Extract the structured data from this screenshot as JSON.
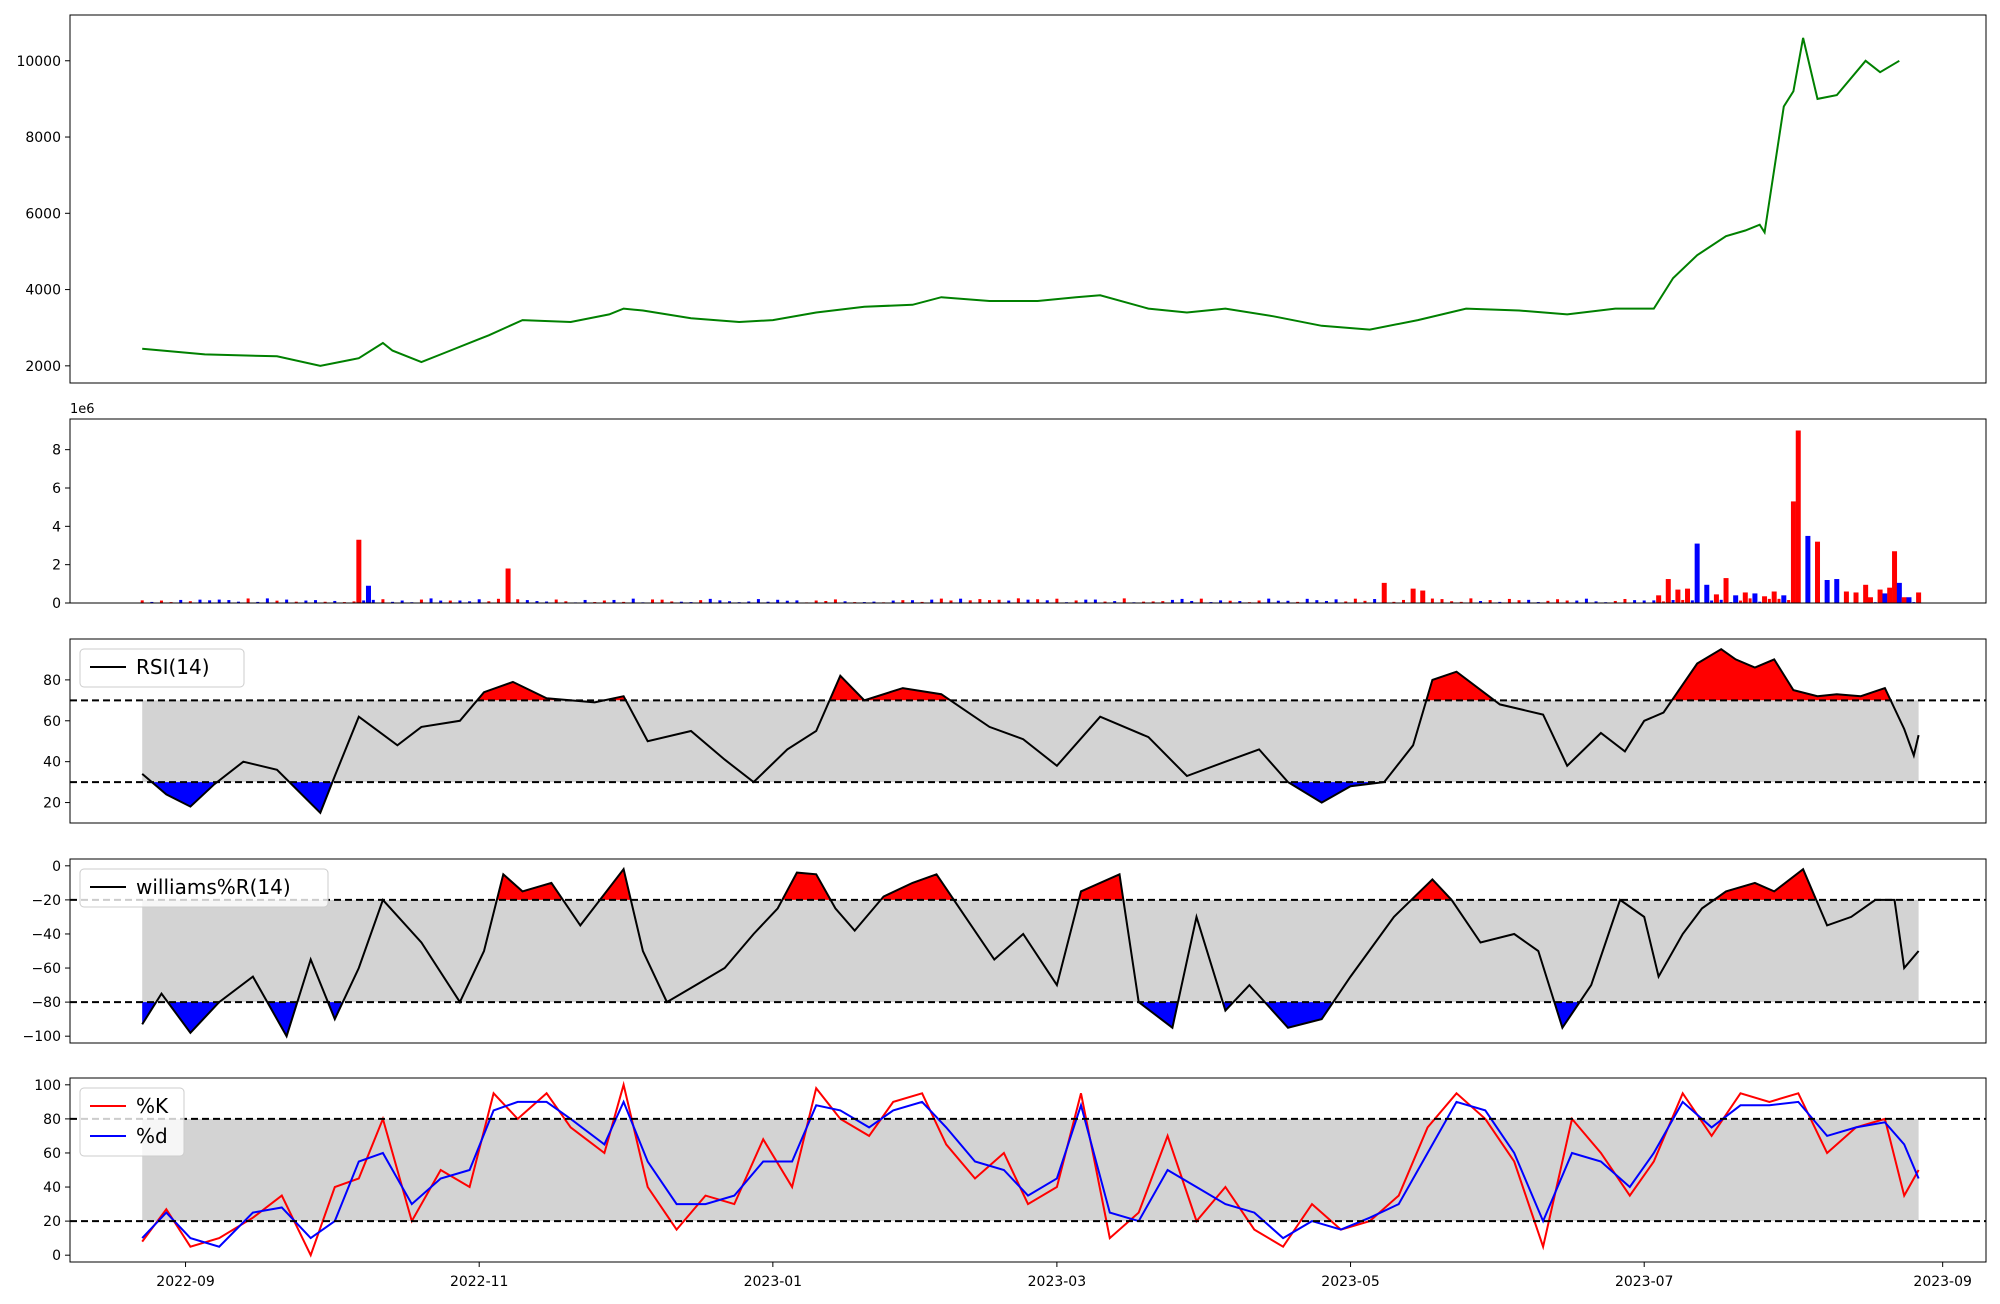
{
  "figure": {
    "x_tick_labels": [
      "2022-09",
      "2022-11",
      "2023-01",
      "2023-03",
      "2023-05",
      "2023-07",
      "2023-09"
    ],
    "x_tick_dates": [
      "2022-09-01",
      "2022-11-01",
      "2023-01-01",
      "2023-03-01",
      "2023-05-01",
      "2023-07-01",
      "2023-09-01"
    ],
    "x_range": [
      "2022-08-08",
      "2023-09-10"
    ]
  },
  "colors": {
    "price": "#008000",
    "volume_up": "#ff0000",
    "volume_down": "#0000ff",
    "overbought_fill": "#ff0000",
    "oversold_fill": "#0000ff",
    "band_fill": "#d3d3d3",
    "rsi_line": "#000000",
    "k_line": "#ff0000",
    "d_line": "#0000ff"
  },
  "chart_data": [
    {
      "type": "line",
      "id": "price",
      "ylim": [
        1550,
        11200
      ],
      "yticks": [
        2000,
        4000,
        6000,
        8000,
        10000
      ],
      "ytick_labels": [
        "2000",
        "4000",
        "6000",
        "8000",
        "10000"
      ],
      "dates": [
        "2022-08-23",
        "2022-09-05",
        "2022-09-20",
        "2022-09-29",
        "2022-10-05",
        "2022-10-07",
        "2022-10-12",
        "2022-10-14",
        "2022-10-20",
        "2022-10-25",
        "2022-11-01",
        "2022-11-03",
        "2022-11-10",
        "2022-11-20",
        "2022-11-28",
        "2022-12-01",
        "2022-12-05",
        "2022-12-15",
        "2022-12-25",
        "2023-01-01",
        "2023-01-10",
        "2023-01-20",
        "2023-01-30",
        "2023-02-05",
        "2023-02-15",
        "2023-02-25",
        "2023-03-05",
        "2023-03-10",
        "2023-03-20",
        "2023-03-28",
        "2023-04-05",
        "2023-04-15",
        "2023-04-25",
        "2023-05-05",
        "2023-05-15",
        "2023-05-25",
        "2023-06-05",
        "2023-06-15",
        "2023-06-25",
        "2023-07-03",
        "2023-07-07",
        "2023-07-12",
        "2023-07-18",
        "2023-07-22",
        "2023-07-25",
        "2023-07-26",
        "2023-07-30",
        "2023-08-01",
        "2023-08-03",
        "2023-08-06",
        "2023-08-10",
        "2023-08-16",
        "2023-08-19",
        "2023-08-23"
      ],
      "values": [
        2450,
        2300,
        2250,
        2000,
        2150,
        2200,
        2600,
        2400,
        2100,
        2350,
        2700,
        2800,
        3200,
        3150,
        3350,
        3500,
        3450,
        3250,
        3150,
        3200,
        3400,
        3550,
        3600,
        3800,
        3700,
        3700,
        3800,
        3850,
        3500,
        3400,
        3500,
        3300,
        3050,
        2950,
        3200,
        3500,
        3450,
        3350,
        3500,
        3500,
        4300,
        4900,
        5400,
        5550,
        5700,
        5500,
        8800,
        9200,
        10600,
        9000,
        9100,
        10000,
        9700,
        10000
      ]
    },
    {
      "type": "bar",
      "id": "volume",
      "exponent_label": "1e6",
      "ylim": [
        0,
        9600000
      ],
      "yticks": [
        0,
        2000000,
        4000000,
        6000000,
        8000000
      ],
      "ytick_labels": [
        "0",
        "2",
        "4",
        "6",
        "8"
      ],
      "bars": [
        {
          "date": "2022-10-07",
          "value": 3300000,
          "dir": "up"
        },
        {
          "date": "2022-10-09",
          "value": 900000,
          "dir": "down"
        },
        {
          "date": "2022-11-07",
          "value": 1800000,
          "dir": "up"
        },
        {
          "date": "2023-05-08",
          "value": 1050000,
          "dir": "up"
        },
        {
          "date": "2023-05-14",
          "value": 750000,
          "dir": "up"
        },
        {
          "date": "2023-05-16",
          "value": 650000,
          "dir": "up"
        },
        {
          "date": "2023-07-04",
          "value": 400000,
          "dir": "up"
        },
        {
          "date": "2023-07-06",
          "value": 1250000,
          "dir": "up"
        },
        {
          "date": "2023-07-08",
          "value": 700000,
          "dir": "up"
        },
        {
          "date": "2023-07-10",
          "value": 750000,
          "dir": "up"
        },
        {
          "date": "2023-07-12",
          "value": 3100000,
          "dir": "down"
        },
        {
          "date": "2023-07-14",
          "value": 950000,
          "dir": "down"
        },
        {
          "date": "2023-07-16",
          "value": 450000,
          "dir": "up"
        },
        {
          "date": "2023-07-18",
          "value": 1300000,
          "dir": "up"
        },
        {
          "date": "2023-07-20",
          "value": 400000,
          "dir": "down"
        },
        {
          "date": "2023-07-22",
          "value": 550000,
          "dir": "up"
        },
        {
          "date": "2023-07-24",
          "value": 500000,
          "dir": "down"
        },
        {
          "date": "2023-07-26",
          "value": 350000,
          "dir": "up"
        },
        {
          "date": "2023-07-28",
          "value": 600000,
          "dir": "up"
        },
        {
          "date": "2023-07-30",
          "value": 400000,
          "dir": "down"
        },
        {
          "date": "2023-08-01",
          "value": 5300000,
          "dir": "up"
        },
        {
          "date": "2023-08-02",
          "value": 9000000,
          "dir": "up"
        },
        {
          "date": "2023-08-04",
          "value": 3500000,
          "dir": "down"
        },
        {
          "date": "2023-08-06",
          "value": 3200000,
          "dir": "up"
        },
        {
          "date": "2023-08-08",
          "value": 1200000,
          "dir": "down"
        },
        {
          "date": "2023-08-10",
          "value": 1250000,
          "dir": "down"
        },
        {
          "date": "2023-08-12",
          "value": 600000,
          "dir": "up"
        },
        {
          "date": "2023-08-14",
          "value": 550000,
          "dir": "up"
        },
        {
          "date": "2023-08-16",
          "value": 950000,
          "dir": "up"
        },
        {
          "date": "2023-08-17",
          "value": 300000,
          "dir": "up"
        },
        {
          "date": "2023-08-19",
          "value": 700000,
          "dir": "up"
        },
        {
          "date": "2023-08-20",
          "value": 500000,
          "dir": "down"
        },
        {
          "date": "2023-08-21",
          "value": 800000,
          "dir": "up"
        },
        {
          "date": "2023-08-22",
          "value": 2700000,
          "dir": "up"
        },
        {
          "date": "2023-08-23",
          "value": 1050000,
          "dir": "down"
        },
        {
          "date": "2023-08-24",
          "value": 300000,
          "dir": "up"
        },
        {
          "date": "2023-08-25",
          "value": 300000,
          "dir": "down"
        },
        {
          "date": "2023-08-27",
          "value": 550000,
          "dir": "up"
        }
      ]
    },
    {
      "type": "line",
      "id": "rsi",
      "legend": "RSI(14)",
      "ylim": [
        10,
        100
      ],
      "yticks": [
        20,
        40,
        60,
        80
      ],
      "ytick_labels": [
        "20",
        "40",
        "60",
        "80"
      ],
      "upper": 70,
      "lower": 30,
      "band_range": [
        "2022-08-23",
        "2023-08-27"
      ],
      "dates": [
        "2022-08-23",
        "2022-08-28",
        "2022-09-02",
        "2022-09-07",
        "2022-09-13",
        "2022-09-20",
        "2022-09-29",
        "2022-10-02",
        "2022-10-07",
        "2022-10-15",
        "2022-10-20",
        "2022-10-28",
        "2022-11-02",
        "2022-11-08",
        "2022-11-15",
        "2022-11-25",
        "2022-12-01",
        "2022-12-06",
        "2022-12-15",
        "2022-12-22",
        "2022-12-28",
        "2023-01-04",
        "2023-01-10",
        "2023-01-15",
        "2023-01-20",
        "2023-01-28",
        "2023-02-05",
        "2023-02-10",
        "2023-02-15",
        "2023-02-22",
        "2023-03-01",
        "2023-03-10",
        "2023-03-20",
        "2023-03-28",
        "2023-04-05",
        "2023-04-12",
        "2023-04-18",
        "2023-04-25",
        "2023-05-01",
        "2023-05-08",
        "2023-05-14",
        "2023-05-18",
        "2023-05-23",
        "2023-06-01",
        "2023-06-10",
        "2023-06-15",
        "2023-06-22",
        "2023-06-27",
        "2023-07-01",
        "2023-07-05",
        "2023-07-12",
        "2023-07-17",
        "2023-07-20",
        "2023-07-24",
        "2023-07-28",
        "2023-08-01",
        "2023-08-06",
        "2023-08-10",
        "2023-08-15",
        "2023-08-20",
        "2023-08-24",
        "2023-08-26",
        "2023-08-27"
      ],
      "values": [
        34,
        24,
        18,
        29,
        40,
        36,
        15,
        33,
        62,
        48,
        57,
        60,
        74,
        79,
        71,
        69,
        72,
        50,
        55,
        41,
        30,
        46,
        55,
        82,
        70,
        76,
        73,
        65,
        57,
        51,
        38,
        62,
        52,
        33,
        40,
        46,
        30,
        20,
        28,
        30,
        48,
        80,
        84,
        68,
        63,
        38,
        54,
        45,
        60,
        64,
        88,
        95,
        90,
        86,
        90,
        75,
        72,
        73,
        72,
        76,
        56,
        43,
        53
      ]
    },
    {
      "type": "line",
      "id": "williams",
      "legend": "williams%R(14)",
      "ylim": [
        -104,
        4
      ],
      "yticks": [
        -100,
        -80,
        -60,
        -40,
        -20,
        0
      ],
      "ytick_labels": [
        "−100",
        "−80",
        "−60",
        "−40",
        "−20",
        "0"
      ],
      "upper": -20,
      "lower": -80,
      "band_range": [
        "2022-08-23",
        "2023-08-27"
      ],
      "dates": [
        "2022-08-23",
        "2022-08-27",
        "2022-09-02",
        "2022-09-08",
        "2022-09-15",
        "2022-09-22",
        "2022-09-27",
        "2022-10-02",
        "2022-10-07",
        "2022-10-12",
        "2022-10-20",
        "2022-10-28",
        "2022-11-02",
        "2022-11-06",
        "2022-11-10",
        "2022-11-16",
        "2022-11-22",
        "2022-12-01",
        "2022-12-05",
        "2022-12-10",
        "2022-12-16",
        "2022-12-22",
        "2022-12-28",
        "2023-01-02",
        "2023-01-06",
        "2023-01-10",
        "2023-01-14",
        "2023-01-18",
        "2023-01-24",
        "2023-01-30",
        "2023-02-04",
        "2023-02-10",
        "2023-02-16",
        "2023-02-22",
        "2023-03-01",
        "2023-03-06",
        "2023-03-14",
        "2023-03-18",
        "2023-03-25",
        "2023-03-30",
        "2023-04-05",
        "2023-04-10",
        "2023-04-18",
        "2023-04-25",
        "2023-05-01",
        "2023-05-10",
        "2023-05-18",
        "2023-05-22",
        "2023-05-28",
        "2023-06-04",
        "2023-06-09",
        "2023-06-14",
        "2023-06-20",
        "2023-06-26",
        "2023-07-01",
        "2023-07-04",
        "2023-07-09",
        "2023-07-13",
        "2023-07-18",
        "2023-07-24",
        "2023-07-28",
        "2023-08-03",
        "2023-08-08",
        "2023-08-13",
        "2023-08-18",
        "2023-08-22",
        "2023-08-24",
        "2023-08-27"
      ],
      "values": [
        -93,
        -75,
        -98,
        -80,
        -65,
        -100,
        -55,
        -90,
        -60,
        -20,
        -45,
        -80,
        -50,
        -5,
        -15,
        -10,
        -35,
        -2,
        -50,
        -80,
        -70,
        -60,
        -40,
        -25,
        -4,
        -5,
        -25,
        -38,
        -18,
        -10,
        -5,
        -30,
        -55,
        -40,
        -70,
        -15,
        -5,
        -80,
        -95,
        -30,
        -85,
        -70,
        -95,
        -90,
        -65,
        -30,
        -8,
        -20,
        -45,
        -40,
        -50,
        -95,
        -70,
        -20,
        -30,
        -65,
        -40,
        -25,
        -15,
        -10,
        -15,
        -2,
        -35,
        -30,
        -20,
        -20,
        -60,
        -50
      ]
    },
    {
      "type": "line",
      "id": "stochastic",
      "legend": [
        "%K",
        "%d"
      ],
      "ylim": [
        -4,
        104
      ],
      "yticks": [
        0,
        20,
        40,
        60,
        80,
        100
      ],
      "ytick_labels": [
        "0",
        "20",
        "40",
        "60",
        "80",
        "100"
      ],
      "upper": 80,
      "lower": 20,
      "band_range": [
        "2022-08-23",
        "2023-08-27"
      ],
      "dates": [
        "2022-08-23",
        "2022-08-28",
        "2022-09-02",
        "2022-09-08",
        "2022-09-15",
        "2022-09-21",
        "2022-09-27",
        "2022-10-02",
        "2022-10-07",
        "2022-10-12",
        "2022-10-18",
        "2022-10-24",
        "2022-10-30",
        "2022-11-04",
        "2022-11-09",
        "2022-11-15",
        "2022-11-20",
        "2022-11-27",
        "2022-12-01",
        "2022-12-06",
        "2022-12-12",
        "2022-12-18",
        "2022-12-24",
        "2022-12-30",
        "2023-01-05",
        "2023-01-10",
        "2023-01-15",
        "2023-01-21",
        "2023-01-26",
        "2023-02-01",
        "2023-02-06",
        "2023-02-12",
        "2023-02-18",
        "2023-02-23",
        "2023-03-01",
        "2023-03-06",
        "2023-03-12",
        "2023-03-18",
        "2023-03-24",
        "2023-03-30",
        "2023-04-05",
        "2023-04-11",
        "2023-04-17",
        "2023-04-23",
        "2023-04-29",
        "2023-05-05",
        "2023-05-11",
        "2023-05-17",
        "2023-05-23",
        "2023-05-29",
        "2023-06-04",
        "2023-06-10",
        "2023-06-16",
        "2023-06-22",
        "2023-06-28",
        "2023-07-03",
        "2023-07-09",
        "2023-07-15",
        "2023-07-21",
        "2023-07-27",
        "2023-08-02",
        "2023-08-08",
        "2023-08-14",
        "2023-08-20",
        "2023-08-24",
        "2023-08-27"
      ],
      "k": [
        8,
        27,
        5,
        10,
        22,
        35,
        0,
        40,
        45,
        80,
        20,
        50,
        40,
        95,
        80,
        95,
        75,
        60,
        100,
        40,
        15,
        35,
        30,
        68,
        40,
        98,
        80,
        70,
        90,
        95,
        65,
        45,
        60,
        30,
        40,
        95,
        10,
        25,
        70,
        20,
        40,
        15,
        5,
        30,
        15,
        20,
        35,
        75,
        95,
        80,
        55,
        5,
        80,
        60,
        35,
        55,
        95,
        70,
        95,
        90,
        95,
        60,
        75,
        80,
        35,
        50
      ],
      "d": [
        10,
        25,
        10,
        5,
        25,
        28,
        10,
        20,
        55,
        60,
        30,
        45,
        50,
        85,
        90,
        90,
        80,
        65,
        90,
        55,
        30,
        30,
        35,
        55,
        55,
        88,
        85,
        75,
        85,
        90,
        75,
        55,
        50,
        35,
        45,
        88,
        25,
        20,
        50,
        40,
        30,
        25,
        10,
        20,
        15,
        22,
        30,
        60,
        90,
        85,
        60,
        20,
        60,
        55,
        40,
        60,
        90,
        75,
        88,
        88,
        90,
        70,
        75,
        78,
        65,
        45
      ]
    }
  ]
}
